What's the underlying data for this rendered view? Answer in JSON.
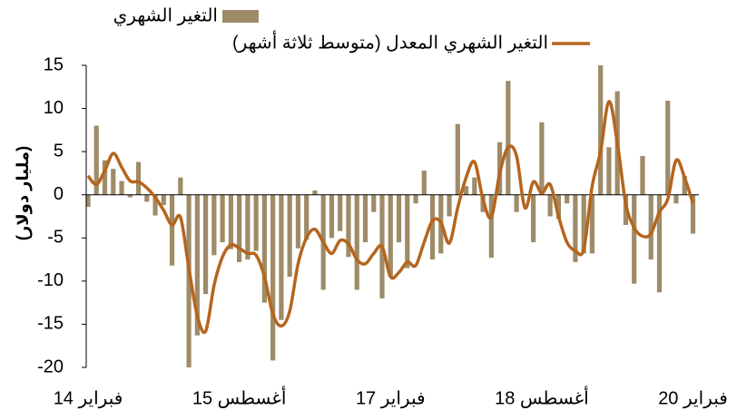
{
  "chart_data": {
    "type": "bar_line",
    "y_label": "(مليار دولار)",
    "categories": [
      "فبراير 14",
      null,
      null,
      null,
      null,
      null,
      null,
      null,
      null,
      null,
      null,
      null,
      null,
      null,
      null,
      null,
      null,
      null,
      "أغسطس 15",
      null,
      null,
      null,
      null,
      null,
      null,
      null,
      null,
      null,
      null,
      null,
      null,
      null,
      null,
      null,
      null,
      null,
      "فبراير 17",
      null,
      null,
      null,
      null,
      null,
      null,
      null,
      null,
      null,
      null,
      null,
      null,
      null,
      null,
      null,
      null,
      null,
      "أغسطس 18",
      null,
      null,
      null,
      null,
      null,
      null,
      null,
      null,
      null,
      null,
      null,
      null,
      null,
      null,
      null,
      null,
      null,
      "فبراير 20"
    ],
    "series": [
      {
        "name": "التغير الشهري",
        "kind": "bar",
        "color": "#9e8b68",
        "values": [
          -1.4,
          8,
          4,
          3,
          1.6,
          -0.3,
          3.8,
          -0.8,
          -2.4,
          -1.2,
          -8.2,
          2,
          -20,
          -16.3,
          -11.5,
          -7,
          -5.5,
          -6.3,
          -7.8,
          -7.5,
          -6.5,
          -12.5,
          -19.2,
          -14.5,
          -9.5,
          -6.2,
          -5.2,
          0.5,
          -11,
          -5,
          -4.2,
          -7.2,
          -11,
          -5.5,
          -2,
          -12,
          -9.5,
          -5.5,
          -8.5,
          -1,
          2.8,
          -7.5,
          -6.8,
          -2.5,
          8.2,
          1,
          2,
          -2,
          -7.3,
          6.1,
          13.2,
          -2,
          0.1,
          -5.5,
          8.4,
          -2.5,
          -2.8,
          -1,
          -7.8,
          -6.8,
          -6.8,
          15,
          5.5,
          12,
          -3.5,
          -10.3,
          4.5,
          -7.5,
          -11.3,
          10.9,
          -1,
          2.2,
          -4.5
        ]
      },
      {
        "name": "التغير الشهري المعدل (متوسط ثلاثة أشهر)",
        "kind": "line",
        "color": "#b5651d",
        "values": [
          2.2,
          1.2,
          2.8,
          4.8,
          3.2,
          1.6,
          1.5,
          0.8,
          -0.3,
          -1.8,
          -3.5,
          -2.6,
          -8.5,
          -14,
          -15.8,
          -10.5,
          -7.2,
          -5.8,
          -6.2,
          -6.8,
          -7,
          -9.5,
          -13.8,
          -15.2,
          -13.5,
          -8,
          -5,
          -4,
          -5.5,
          -6.8,
          -5.3,
          -5.7,
          -7.5,
          -8,
          -6.8,
          -6,
          -9.5,
          -9,
          -7.8,
          -8.2,
          -5.5,
          -3,
          -3.2,
          -5.6,
          -1.5,
          2,
          3.8,
          -0.5,
          -2.6,
          2.5,
          5.5,
          4.5,
          -1.5,
          1.5,
          0.2,
          1.2,
          -2.5,
          -5.5,
          -6.5,
          -6.3,
          1,
          5,
          10.8,
          6,
          -1,
          -3.8,
          -4.8,
          -4.5,
          -2,
          -0.5,
          4,
          2,
          -1
        ]
      }
    ],
    "ylim": [
      -20,
      15
    ],
    "yticks": [
      -20,
      -15,
      -10,
      -5,
      0,
      5,
      10,
      15
    ]
  }
}
